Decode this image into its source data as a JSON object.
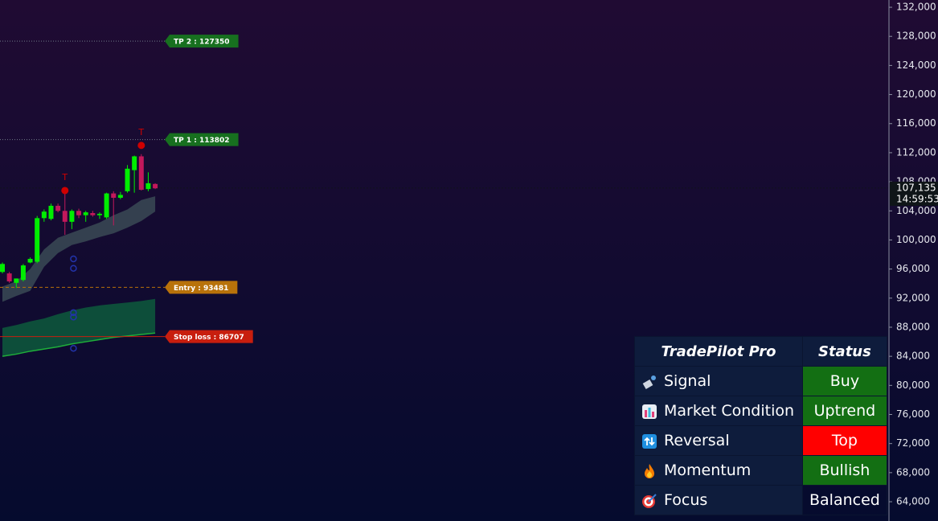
{
  "chart_data": {
    "type": "candlestick",
    "categories": [
      null,
      null,
      null,
      null,
      null,
      null,
      null,
      null,
      null,
      null,
      null,
      null,
      null,
      null,
      null,
      null,
      null,
      null,
      null,
      null,
      null,
      null,
      null
    ],
    "open": [
      95600,
      95400,
      94100,
      94500,
      96900,
      97000,
      103000,
      102900,
      104700,
      104000,
      102500,
      104000,
      103400,
      103700,
      103400,
      103100,
      106400,
      105800,
      106700,
      109600,
      111500,
      107000,
      107700
    ],
    "high": [
      96900,
      95600,
      94700,
      96700,
      97600,
      103300,
      104200,
      105000,
      105000,
      106700,
      104200,
      104300,
      104000,
      104000,
      103800,
      106500,
      106700,
      106600,
      110300,
      111600,
      111800,
      109300,
      107800
    ],
    "low": [
      95400,
      94100,
      93400,
      94300,
      96800,
      96800,
      102500,
      102700,
      103800,
      100700,
      101500,
      103000,
      102500,
      103200,
      102900,
      102900,
      102000,
      105600,
      106500,
      106500,
      106800,
      106700,
      107000
    ],
    "close": [
      96700,
      94300,
      94700,
      96500,
      97400,
      103000,
      103900,
      104700,
      104000,
      102500,
      104000,
      103400,
      103800,
      103400,
      103600,
      106400,
      105800,
      106200,
      109800,
      111500,
      106900,
      107800,
      107100
    ],
    "up_color": "#00ee00",
    "down_color": "#c2185b",
    "ylim": [
      61350,
      133000
    ],
    "yticks": [
      {
        "value": 64000,
        "label": "64,000"
      },
      {
        "value": 68000,
        "label": "68,000"
      },
      {
        "value": 72000,
        "label": "72,000"
      },
      {
        "value": 76000,
        "label": "76,000"
      },
      {
        "value": 80000,
        "label": "80,000"
      },
      {
        "value": 84000,
        "label": "84,000"
      },
      {
        "value": 88000,
        "label": "88,000"
      },
      {
        "value": 92000,
        "label": "92,000"
      },
      {
        "value": 96000,
        "label": "96,000"
      },
      {
        "value": 100000,
        "label": "100,000"
      },
      {
        "value": 104000,
        "label": "104,000"
      },
      {
        "value": 108000,
        "label": "108,000"
      },
      {
        "value": 112000,
        "label": "112,000"
      },
      {
        "value": 116000,
        "label": "116,000"
      },
      {
        "value": 120000,
        "label": "120,000"
      },
      {
        "value": 124000,
        "label": "124,000"
      },
      {
        "value": 128000,
        "label": "128,000"
      },
      {
        "value": 132000,
        "label": "132,000"
      }
    ],
    "bands": [
      {
        "x": [
          0,
          2,
          4,
          6,
          8,
          10,
          12,
          14,
          16,
          18,
          20,
          22
        ],
        "upper": [
          93600,
          94300,
          96000,
          98700,
          100300,
          101000,
          101700,
          102400,
          103400,
          104200,
          105500,
          106000
        ],
        "lower": [
          91500,
          92300,
          93000,
          96300,
          98200,
          99300,
          99800,
          100400,
          100900,
          101700,
          102600,
          103900
        ],
        "color": "#3a4a55"
      },
      {
        "x": [
          0,
          2,
          4,
          6,
          8,
          10,
          12,
          14,
          16,
          18,
          20,
          22
        ],
        "upper": [
          87900,
          88300,
          88800,
          89200,
          89800,
          90300,
          90700,
          91000,
          91200,
          91400,
          91600,
          91900
        ],
        "lower": [
          84000,
          84300,
          84700,
          85000,
          85300,
          85700,
          86000,
          86300,
          86600,
          86800,
          87000,
          87200
        ],
        "color": "#0d5a3c",
        "edge_color": "#1fae3a"
      }
    ],
    "top_markers": [
      {
        "x": 9,
        "value": 106800,
        "label": "T"
      },
      {
        "x": 20,
        "value": 113000,
        "label": "T"
      }
    ],
    "circle_markers": {
      "x": [
        10,
        10,
        10,
        10,
        10
      ],
      "values": [
        97400,
        96100,
        90000,
        89400,
        85100
      ],
      "color": "#2233aa"
    },
    "levels": [
      {
        "value": 127350,
        "label": "TP 2 : 127350",
        "color": "#17701f",
        "style": "dotted"
      },
      {
        "value": 113802,
        "label": "TP 1 : 113802",
        "color": "#17701f",
        "style": "dotted"
      },
      {
        "value": 93481,
        "label": "Entry : 93481",
        "color": "#b8720a",
        "style": "dashed"
      },
      {
        "value": 86707,
        "label": "Stop loss : 86707",
        "color": "#c81e0e",
        "style": "solid"
      }
    ],
    "current_price": {
      "value": 107135,
      "label": "107,135",
      "countdown": "14:59:53"
    }
  },
  "panel": {
    "header": [
      "TradePilot Pro",
      "Status"
    ],
    "rows": [
      {
        "label": "Signal",
        "status": "Buy",
        "color": "#136f13"
      },
      {
        "label": "Market Condition",
        "status": "Uptrend",
        "color": "#136f13"
      },
      {
        "label": "Reversal",
        "status": "Top",
        "color": "#ff0000"
      },
      {
        "label": "Momentum",
        "status": "Bullish",
        "color": "#136f13"
      },
      {
        "label": "Focus",
        "status": "Balanced",
        "color": null
      }
    ]
  }
}
